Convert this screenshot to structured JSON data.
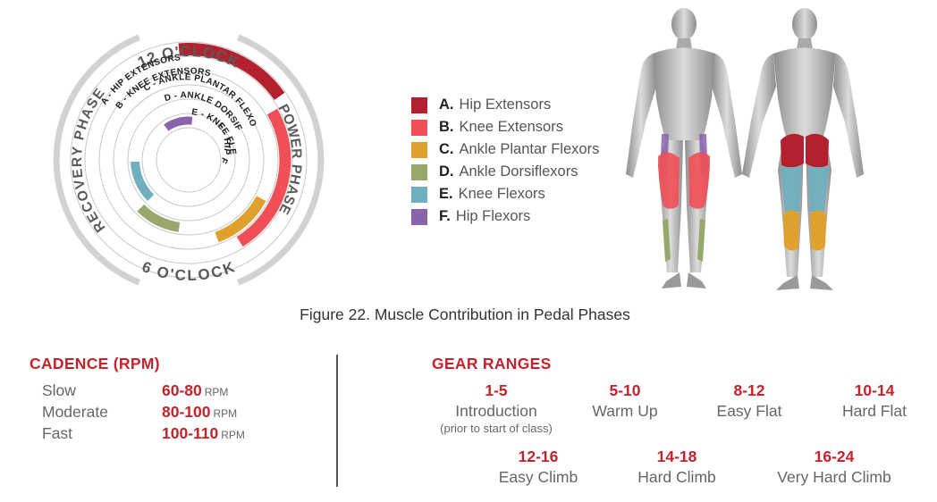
{
  "wheel": {
    "top_label": "12 O'CLOCK",
    "bottom_label": "6 O'CLOCK",
    "left_label": "RECOVERY PHASE",
    "right_label": "POWER PHASE",
    "rings": [
      {
        "label": "A - HIP EXTENSORS"
      },
      {
        "label": "B - KNEE EXTENSORS"
      },
      {
        "label": "C - ANKLE PLANTAR FLEXORS"
      },
      {
        "label": "D - ANKLE DORSIFLEXORS"
      },
      {
        "label": "E - KNEE FLEXORS"
      },
      {
        "label": "F - HIP FLEXORS"
      }
    ]
  },
  "legend": [
    {
      "letter": "A.",
      "name": "Hip Extensors",
      "color": "#b5202e"
    },
    {
      "letter": "B.",
      "name": "Knee Extensors",
      "color": "#ef4f55"
    },
    {
      "letter": "C.",
      "name": "Ankle Plantar Flexors",
      "color": "#e0a02c"
    },
    {
      "letter": "D.",
      "name": "Ankle Dorsiflexors",
      "color": "#98a86a"
    },
    {
      "letter": "E.",
      "name": "Knee Flexors",
      "color": "#6fafbf"
    },
    {
      "letter": "F.",
      "name": "Hip Flexors",
      "color": "#8a63ad"
    }
  ],
  "caption": "Figure 22. Muscle Contribution in Pedal Phases",
  "cadence": {
    "title": "CADENCE (RPM)",
    "rows": [
      {
        "label": "Slow",
        "value": "60-80",
        "unit": "RPM"
      },
      {
        "label": "Moderate",
        "value": "80-100",
        "unit": "RPM"
      },
      {
        "label": "Fast",
        "value": "100-110",
        "unit": "RPM"
      }
    ]
  },
  "gears": {
    "title": "GEAR RANGES",
    "items": [
      {
        "range": "1-5",
        "label": "Introduction",
        "note": "(prior to start of class)"
      },
      {
        "range": "5-10",
        "label": "Warm Up"
      },
      {
        "range": "8-12",
        "label": "Easy Flat"
      },
      {
        "range": "10-14",
        "label": "Hard Flat"
      },
      {
        "range": "12-16",
        "label": "Easy Climb"
      },
      {
        "range": "14-18",
        "label": "Hard Climb"
      },
      {
        "range": "16-24",
        "label": "Very Hard Climb"
      }
    ]
  }
}
